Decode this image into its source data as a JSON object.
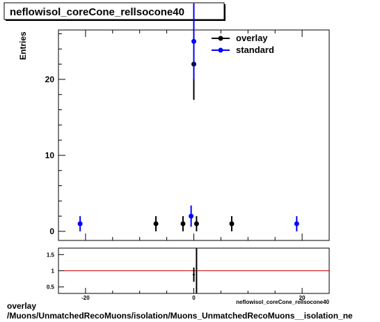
{
  "chart_data": [
    {
      "type": "scatter",
      "title": "neflowisol_coreCone_rellsocone40",
      "ylabel": "Entries",
      "xlim": [
        -25,
        25
      ],
      "ylim": [
        -1.2,
        26.5
      ],
      "y_ticks": [
        0,
        10,
        20
      ],
      "legend_position": "top-right",
      "series": [
        {
          "name": "overlay",
          "color": "#000000",
          "x": [
            -7,
            -2,
            0,
            0.5,
            7
          ],
          "y": [
            1,
            1,
            22,
            1,
            1
          ],
          "err": [
            1,
            1,
            4.7,
            1,
            1
          ]
        },
        {
          "name": "standard",
          "color": "#0000ff",
          "x": [
            -21,
            -0.5,
            0,
            19
          ],
          "y": [
            1,
            2,
            25,
            1
          ],
          "err": [
            1,
            1.4,
            5,
            1
          ]
        }
      ]
    },
    {
      "type": "scatter",
      "xlabel": "neflowisol_coreCone_rellsocone40",
      "xlim": [
        -25,
        25
      ],
      "ylim": [
        0.3,
        1.7
      ],
      "x_ticks": [
        -20,
        0,
        20
      ],
      "y_ticks": [
        0.5,
        1,
        1.5
      ],
      "reference_line": {
        "y": 1,
        "color": "#cc0000"
      },
      "points": [
        {
          "x": 0,
          "y": 0.88,
          "err": 0.22
        }
      ]
    }
  ],
  "footer": {
    "line1": "overlay",
    "line2": "/Muons/UnmatchedRecoMuons/isolation/Muons_UnmatchedRecoMuons__isolation_ne"
  }
}
